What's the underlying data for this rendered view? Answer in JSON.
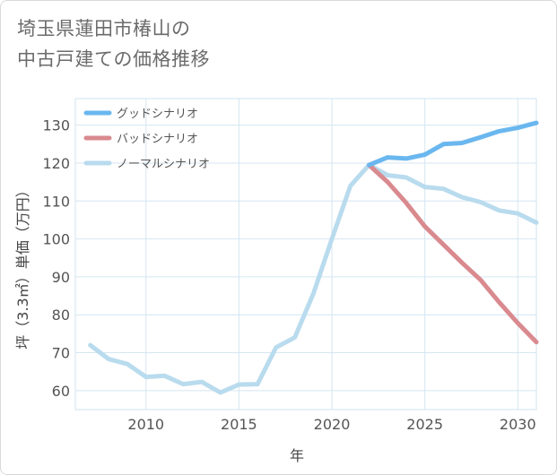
{
  "title_lines": [
    "埼玉県蓮田市椿山の",
    "中古戸建ての価格推移"
  ],
  "chart_data": {
    "type": "line",
    "xlabel": "年",
    "ylabel": "坪（3.3㎡）単価（万円）",
    "xlim": [
      2006.2,
      2031
    ],
    "ylim": [
      55,
      137
    ],
    "x_ticks": [
      2010,
      2015,
      2020,
      2025,
      2030
    ],
    "y_ticks": [
      60,
      70,
      80,
      90,
      100,
      110,
      120,
      130
    ],
    "grid": true,
    "legend_position": "top-left",
    "series": [
      {
        "name": "グッドシナリオ",
        "color": "#6ab7ef",
        "x": [
          2022,
          2023,
          2024,
          2025,
          2026,
          2027,
          2028,
          2029,
          2030,
          2031
        ],
        "y": [
          119.5,
          121.5,
          121.2,
          122.2,
          125,
          125.3,
          126.8,
          128.4,
          129.3,
          130.6
        ]
      },
      {
        "name": "バッドシナリオ",
        "color": "#d98a8f",
        "x": [
          2022,
          2023,
          2024,
          2025,
          2026,
          2027,
          2028,
          2029,
          2030,
          2031
        ],
        "y": [
          119.5,
          115,
          109.5,
          103.3,
          98.5,
          93.7,
          89.2,
          83.3,
          77.8,
          72.8
        ]
      },
      {
        "name": "ノーマルシナリオ",
        "color": "#b9dbee",
        "x": [
          2007,
          2008,
          2009,
          2010,
          2011,
          2012,
          2013,
          2014,
          2015,
          2016,
          2017,
          2018,
          2019,
          2020,
          2021,
          2022,
          2023,
          2024,
          2025,
          2026,
          2027,
          2028,
          2029,
          2030,
          2031
        ],
        "y": [
          72,
          68.3,
          67,
          63.6,
          63.9,
          61.7,
          62.3,
          59.5,
          61.6,
          61.7,
          71.4,
          74,
          85.5,
          100,
          114,
          119.5,
          116.8,
          116.2,
          113.7,
          113.2,
          111,
          109.7,
          107.5,
          106.7,
          104.3
        ]
      }
    ]
  }
}
